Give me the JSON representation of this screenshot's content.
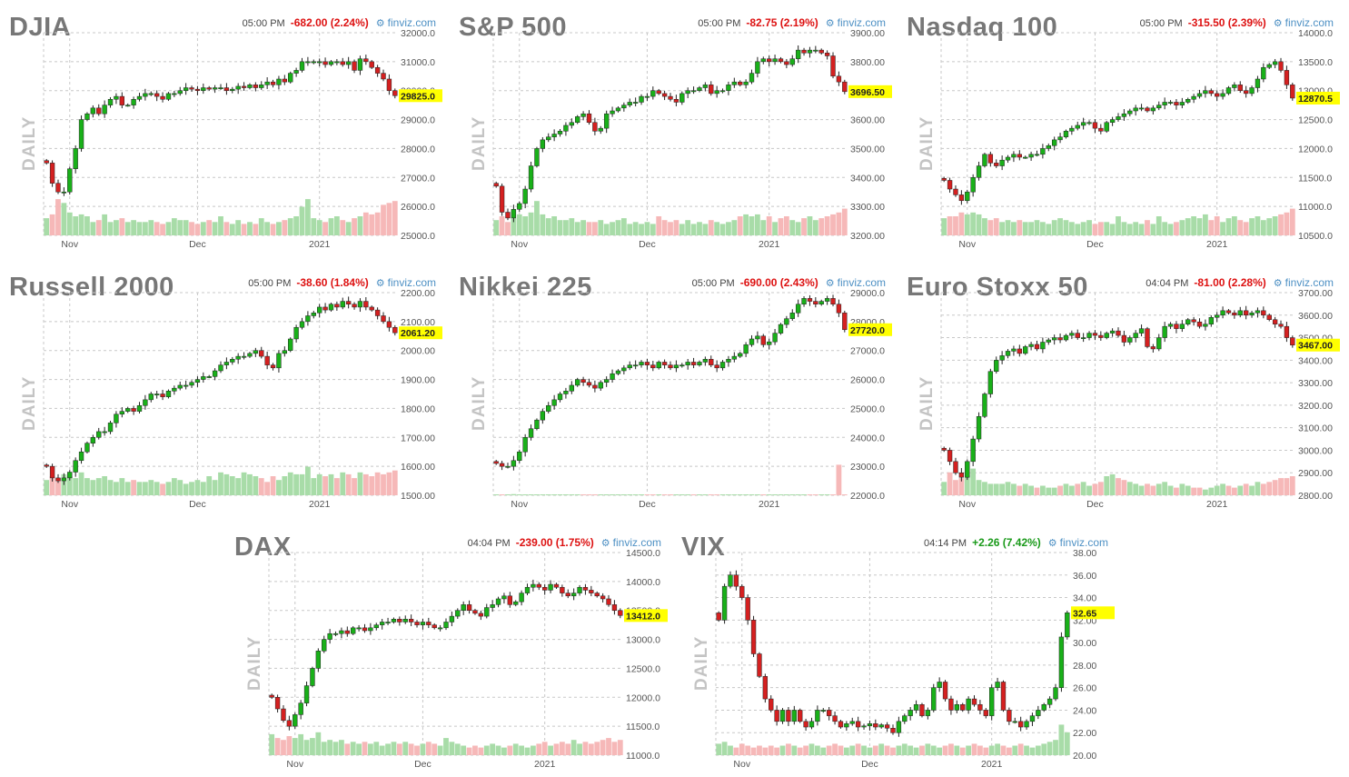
{
  "common": {
    "daily_label": "DAILY",
    "brand": "finviz.com",
    "brand_icon": "settings-icon",
    "month_labels": [
      "Nov",
      "Dec",
      "2021"
    ],
    "colors": {
      "up": "#19b019",
      "down": "#d42020",
      "vol_up": "#a8dca8",
      "vol_down": "#f6b8b8",
      "highlight": "#ffff00",
      "grid": "#c8c8c8"
    }
  },
  "panels": [
    {
      "title": "DJIA",
      "time": "05:00 PM",
      "change": "-682.00 (2.24%)",
      "direction": "down"
    },
    {
      "title": "S&P 500",
      "time": "05:00 PM",
      "change": "-82.75 (2.19%)",
      "direction": "down"
    },
    {
      "title": "Nasdaq 100",
      "time": "05:00 PM",
      "change": "-315.50 (2.39%)",
      "direction": "down"
    },
    {
      "title": "Russell 2000",
      "time": "05:00 PM",
      "change": "-38.60 (1.84%)",
      "direction": "down"
    },
    {
      "title": "Nikkei 225",
      "time": "05:00 PM",
      "change": "-690.00 (2.43%)",
      "direction": "down"
    },
    {
      "title": "Euro Stoxx 50",
      "time": "04:04 PM",
      "change": "-81.00 (2.28%)",
      "direction": "down"
    },
    {
      "title": "DAX",
      "time": "04:04 PM",
      "change": "-239.00 (1.75%)",
      "direction": "down"
    },
    {
      "title": "VIX",
      "time": "04:14 PM",
      "change": "+2.26 (7.42%)",
      "direction": "up"
    }
  ],
  "chart_data": [
    {
      "type": "candlestick",
      "title": "DJIA",
      "y_ticks": [
        "32000.0",
        "31000.0",
        "30000.0",
        "29000.0",
        "28000.0",
        "27000.0",
        "26000.0",
        "25000.0"
      ],
      "ylim": [
        25000,
        32000
      ],
      "last_label": "29825.0",
      "last_value": 29825,
      "close": [
        27500,
        26800,
        26500,
        26500,
        27300,
        28000,
        29000,
        29200,
        29400,
        29200,
        29500,
        29700,
        29800,
        29500,
        29500,
        29700,
        29800,
        29900,
        29900,
        29800,
        29700,
        29900,
        29900,
        30000,
        30100,
        30050,
        30000,
        30100,
        30050,
        30100,
        30100,
        30000,
        30050,
        30150,
        30100,
        30200,
        30100,
        30200,
        30300,
        30200,
        30400,
        30300,
        30600,
        30700,
        31000,
        31000,
        31000,
        31000,
        30900,
        31000,
        31000,
        30900,
        31000,
        30700,
        31100,
        31000,
        30800,
        30600,
        30400,
        30000,
        29825
      ],
      "volume_rel": [
        0.45,
        0.55,
        0.95,
        0.85,
        0.6,
        0.5,
        0.55,
        0.5,
        0.35,
        0.4,
        0.55,
        0.35,
        0.4,
        0.45,
        0.35,
        0.4,
        0.35,
        0.35,
        0.4,
        0.35,
        0.3,
        0.35,
        0.45,
        0.4,
        0.4,
        0.35,
        0.3,
        0.35,
        0.4,
        0.35,
        0.5,
        0.35,
        0.3,
        0.4,
        0.3,
        0.35,
        0.3,
        0.45,
        0.35,
        0.3,
        0.35,
        0.4,
        0.45,
        0.5,
        0.75,
        0.95,
        0.45,
        0.4,
        0.35,
        0.45,
        0.5,
        0.4,
        0.35,
        0.45,
        0.5,
        0.6,
        0.55,
        0.6,
        0.8,
        0.85,
        0.9
      ]
    },
    {
      "type": "candlestick",
      "title": "S&P 500",
      "y_ticks": [
        "3900.00",
        "3800.00",
        "3700.00",
        "3600.00",
        "3500.00",
        "3400.00",
        "3300.00",
        "3200.00"
      ],
      "ylim": [
        3200,
        3900
      ],
      "last_label": "3696.50",
      "last_value": 3696.5,
      "close": [
        3370,
        3280,
        3260,
        3290,
        3310,
        3360,
        3440,
        3500,
        3530,
        3540,
        3550,
        3560,
        3580,
        3590,
        3610,
        3620,
        3590,
        3560,
        3570,
        3620,
        3630,
        3640,
        3650,
        3660,
        3660,
        3680,
        3680,
        3700,
        3690,
        3680,
        3670,
        3660,
        3690,
        3700,
        3700,
        3710,
        3720,
        3690,
        3700,
        3700,
        3720,
        3730,
        3720,
        3730,
        3760,
        3800,
        3810,
        3800,
        3810,
        3800,
        3790,
        3810,
        3840,
        3830,
        3840,
        3840,
        3830,
        3820,
        3750,
        3730,
        3696.5
      ],
      "volume_rel": [
        0.4,
        0.5,
        0.35,
        0.45,
        0.55,
        0.5,
        0.6,
        0.9,
        0.55,
        0.45,
        0.5,
        0.4,
        0.4,
        0.45,
        0.35,
        0.4,
        0.35,
        0.35,
        0.4,
        0.3,
        0.35,
        0.4,
        0.45,
        0.3,
        0.35,
        0.3,
        0.35,
        0.3,
        0.5,
        0.4,
        0.35,
        0.4,
        0.3,
        0.4,
        0.3,
        0.35,
        0.3,
        0.4,
        0.35,
        0.3,
        0.35,
        0.4,
        0.5,
        0.55,
        0.5,
        0.55,
        0.4,
        0.5,
        0.35,
        0.45,
        0.5,
        0.4,
        0.35,
        0.45,
        0.5,
        0.4,
        0.45,
        0.5,
        0.55,
        0.6,
        0.7
      ]
    },
    {
      "type": "candlestick",
      "title": "Nasdaq 100",
      "y_ticks": [
        "14000.0",
        "13500.0",
        "13000.0",
        "12500.0",
        "12000.0",
        "11500.0",
        "11000.0",
        "10500.0"
      ],
      "ylim": [
        10500,
        14000
      ],
      "last_label": "12870.5",
      "last_value": 12870.5,
      "close": [
        11450,
        11300,
        11200,
        11100,
        11250,
        11500,
        11700,
        11900,
        11750,
        11700,
        11800,
        11850,
        11900,
        11850,
        11850,
        11900,
        11900,
        12000,
        12050,
        12150,
        12200,
        12300,
        12350,
        12400,
        12450,
        12450,
        12350,
        12300,
        12450,
        12500,
        12550,
        12600,
        12650,
        12700,
        12700,
        12650,
        12700,
        12750,
        12800,
        12800,
        12750,
        12800,
        12850,
        12900,
        12950,
        13000,
        12950,
        12900,
        12950,
        13050,
        13100,
        13000,
        12950,
        13050,
        13200,
        13400,
        13450,
        13500,
        13350,
        13100,
        12870.5
      ],
      "volume_rel": [
        0.45,
        0.5,
        0.5,
        0.6,
        0.55,
        0.6,
        0.55,
        0.45,
        0.4,
        0.45,
        0.35,
        0.4,
        0.35,
        0.4,
        0.35,
        0.35,
        0.4,
        0.35,
        0.3,
        0.4,
        0.45,
        0.4,
        0.35,
        0.3,
        0.35,
        0.4,
        0.3,
        0.35,
        0.35,
        0.3,
        0.5,
        0.35,
        0.3,
        0.35,
        0.3,
        0.4,
        0.3,
        0.5,
        0.35,
        0.3,
        0.35,
        0.4,
        0.45,
        0.5,
        0.45,
        0.55,
        0.4,
        0.5,
        0.35,
        0.45,
        0.5,
        0.4,
        0.35,
        0.45,
        0.5,
        0.4,
        0.45,
        0.5,
        0.55,
        0.6,
        0.7
      ]
    },
    {
      "type": "candlestick",
      "title": "Russell 2000",
      "y_ticks": [
        "2200.00",
        "2100.00",
        "2000.00",
        "1900.00",
        "1800.00",
        "1700.00",
        "1600.00",
        "1500.00"
      ],
      "ylim": [
        1500,
        2200
      ],
      "last_label": "2061.20",
      "last_value": 2061.2,
      "close": [
        1600,
        1560,
        1550,
        1560,
        1580,
        1620,
        1650,
        1680,
        1700,
        1720,
        1720,
        1750,
        1780,
        1790,
        1800,
        1790,
        1810,
        1830,
        1850,
        1850,
        1840,
        1860,
        1870,
        1880,
        1880,
        1890,
        1900,
        1910,
        1910,
        1930,
        1950,
        1960,
        1970,
        1980,
        1980,
        1990,
        2000,
        1980,
        1950,
        1940,
        1990,
        2000,
        2040,
        2080,
        2100,
        2120,
        2130,
        2150,
        2140,
        2160,
        2150,
        2170,
        2160,
        2150,
        2170,
        2150,
        2140,
        2120,
        2100,
        2080,
        2061.2
      ],
      "volume_rel": [
        0.4,
        0.5,
        0.45,
        0.55,
        0.5,
        0.45,
        0.6,
        0.45,
        0.4,
        0.45,
        0.5,
        0.4,
        0.35,
        0.45,
        0.35,
        0.4,
        0.35,
        0.35,
        0.4,
        0.35,
        0.3,
        0.35,
        0.45,
        0.4,
        0.3,
        0.35,
        0.4,
        0.35,
        0.5,
        0.4,
        0.6,
        0.55,
        0.5,
        0.45,
        0.6,
        0.55,
        0.5,
        0.45,
        0.35,
        0.5,
        0.4,
        0.5,
        0.6,
        0.55,
        0.55,
        0.75,
        0.45,
        0.55,
        0.5,
        0.55,
        0.45,
        0.6,
        0.55,
        0.45,
        0.6,
        0.55,
        0.5,
        0.6,
        0.55,
        0.6,
        0.65
      ]
    },
    {
      "type": "candlestick",
      "title": "Nikkei 225",
      "y_ticks": [
        "29000.0",
        "28000.0",
        "27000.0",
        "26000.0",
        "25000.0",
        "24000.0",
        "23000.0",
        "22000.0"
      ],
      "ylim": [
        22000,
        29000
      ],
      "last_label": "27720.0",
      "last_value": 27720,
      "close": [
        23100,
        23000,
        23000,
        23200,
        23500,
        24000,
        24300,
        24600,
        24900,
        25100,
        25300,
        25500,
        25600,
        25800,
        26000,
        25900,
        25800,
        25700,
        25900,
        26000,
        26200,
        26300,
        26400,
        26500,
        26500,
        26600,
        26500,
        26400,
        26600,
        26500,
        26400,
        26500,
        26500,
        26600,
        26500,
        26600,
        26700,
        26500,
        26400,
        26600,
        26700,
        26800,
        26900,
        27200,
        27400,
        27500,
        27200,
        27300,
        27600,
        27900,
        28100,
        28300,
        28600,
        28800,
        28700,
        28600,
        28700,
        28800,
        28600,
        28300,
        27720
      ],
      "volume_rel": [
        0.02,
        0.02,
        0.02,
        0.03,
        0.02,
        0.02,
        0.02,
        0.02,
        0.02,
        0.02,
        0.02,
        0.02,
        0.02,
        0.02,
        0.02,
        0.02,
        0.02,
        0.02,
        0.02,
        0.02,
        0.02,
        0.02,
        0.02,
        0.02,
        0.02,
        0.02,
        0.02,
        0.02,
        0.02,
        0.02,
        0.02,
        0.02,
        0.02,
        0.02,
        0.02,
        0.02,
        0.02,
        0.02,
        0.02,
        0.02,
        0.02,
        0.02,
        0.02,
        0.02,
        0.02,
        0.02,
        0.02,
        0.02,
        0.02,
        0.02,
        0.02,
        0.02,
        0.02,
        0.02,
        0.02,
        0.02,
        0.02,
        0.02,
        0.02,
        0.8,
        0.02
      ]
    },
    {
      "type": "candlestick",
      "title": "Euro Stoxx 50",
      "y_ticks": [
        "3700.00",
        "3600.00",
        "3500.00",
        "3400.00",
        "3300.00",
        "3200.00",
        "3100.00",
        "3000.00",
        "2900.00",
        "2800.00"
      ],
      "ylim": [
        2800,
        3700
      ],
      "last_label": "3467.00",
      "last_value": 3467,
      "close": [
        3000,
        2950,
        2900,
        2880,
        2950,
        3050,
        3150,
        3250,
        3350,
        3400,
        3420,
        3440,
        3450,
        3430,
        3460,
        3470,
        3450,
        3480,
        3490,
        3500,
        3490,
        3510,
        3520,
        3500,
        3500,
        3520,
        3510,
        3500,
        3520,
        3530,
        3510,
        3480,
        3500,
        3520,
        3540,
        3460,
        3450,
        3500,
        3550,
        3560,
        3540,
        3560,
        3580,
        3570,
        3550,
        3560,
        3590,
        3600,
        3620,
        3610,
        3600,
        3620,
        3600,
        3610,
        3620,
        3600,
        3580,
        3560,
        3550,
        3500,
        3467
      ],
      "volume_rel": [
        0.35,
        0.6,
        0.4,
        0.45,
        0.55,
        0.7,
        0.4,
        0.35,
        0.3,
        0.3,
        0.3,
        0.35,
        0.3,
        0.25,
        0.3,
        0.25,
        0.2,
        0.25,
        0.2,
        0.2,
        0.25,
        0.3,
        0.25,
        0.3,
        0.35,
        0.25,
        0.3,
        0.35,
        0.5,
        0.55,
        0.45,
        0.4,
        0.35,
        0.3,
        0.25,
        0.3,
        0.25,
        0.3,
        0.35,
        0.25,
        0.2,
        0.3,
        0.25,
        0.2,
        0.2,
        0.15,
        0.2,
        0.25,
        0.3,
        0.25,
        0.2,
        0.25,
        0.3,
        0.25,
        0.35,
        0.3,
        0.35,
        0.4,
        0.45,
        0.45,
        0.5
      ]
    },
    {
      "type": "candlestick",
      "title": "DAX",
      "y_ticks": [
        "14500.0",
        "14000.0",
        "13500.0",
        "13000.0",
        "12500.0",
        "12000.0",
        "11500.0",
        "11000.0"
      ],
      "ylim": [
        11000,
        14500
      ],
      "last_label": "13412.0",
      "last_value": 13412,
      "close": [
        12000,
        11800,
        11600,
        11500,
        11700,
        11900,
        12200,
        12500,
        12800,
        13000,
        13100,
        13100,
        13150,
        13100,
        13200,
        13200,
        13150,
        13200,
        13250,
        13300,
        13300,
        13350,
        13300,
        13350,
        13300,
        13250,
        13300,
        13250,
        13200,
        13200,
        13300,
        13400,
        13500,
        13600,
        13500,
        13450,
        13400,
        13550,
        13600,
        13700,
        13750,
        13600,
        13650,
        13800,
        13900,
        13950,
        13900,
        13850,
        13950,
        13900,
        13800,
        13750,
        13800,
        13900,
        13850,
        13800,
        13750,
        13700,
        13600,
        13500,
        13412
      ],
      "volume_rel": [
        0.55,
        0.45,
        0.4,
        0.5,
        0.45,
        0.55,
        0.4,
        0.45,
        0.6,
        0.35,
        0.4,
        0.35,
        0.4,
        0.3,
        0.35,
        0.3,
        0.35,
        0.3,
        0.35,
        0.25,
        0.3,
        0.35,
        0.3,
        0.35,
        0.3,
        0.25,
        0.3,
        0.35,
        0.3,
        0.25,
        0.45,
        0.35,
        0.3,
        0.25,
        0.2,
        0.25,
        0.2,
        0.25,
        0.3,
        0.25,
        0.2,
        0.25,
        0.3,
        0.25,
        0.2,
        0.25,
        0.3,
        0.35,
        0.25,
        0.3,
        0.35,
        0.3,
        0.4,
        0.3,
        0.35,
        0.3,
        0.35,
        0.4,
        0.45,
        0.35,
        0.4
      ]
    },
    {
      "type": "candlestick",
      "title": "VIX",
      "y_ticks": [
        "38.00",
        "36.00",
        "34.00",
        "32.00",
        "30.00",
        "28.00",
        "26.00",
        "24.00",
        "22.00",
        "20.00"
      ],
      "ylim": [
        20,
        38
      ],
      "last_label": "32.65",
      "last_value": 32.65,
      "close": [
        32,
        35,
        36,
        35,
        34,
        32,
        29,
        27,
        25,
        24,
        23,
        24,
        23,
        24,
        23,
        22.5,
        23,
        24,
        24,
        23.5,
        23,
        22.5,
        22.8,
        23,
        22.5,
        22.6,
        22.8,
        22.5,
        22.7,
        22.4,
        22,
        23,
        23.5,
        24,
        24.5,
        23.5,
        24,
        26,
        26.5,
        25,
        24,
        24.5,
        24,
        25,
        24.5,
        24,
        23.5,
        26,
        26.5,
        24,
        23,
        23,
        22.5,
        23,
        23.5,
        24,
        24.5,
        25,
        26,
        30.5,
        32.65
      ],
      "volume_rel": [
        0.3,
        0.35,
        0.25,
        0.2,
        0.3,
        0.25,
        0.2,
        0.25,
        0.2,
        0.25,
        0.2,
        0.25,
        0.3,
        0.25,
        0.2,
        0.25,
        0.3,
        0.25,
        0.2,
        0.25,
        0.3,
        0.25,
        0.2,
        0.25,
        0.3,
        0.25,
        0.2,
        0.25,
        0.3,
        0.25,
        0.2,
        0.25,
        0.3,
        0.25,
        0.2,
        0.25,
        0.3,
        0.25,
        0.2,
        0.25,
        0.3,
        0.25,
        0.2,
        0.25,
        0.3,
        0.25,
        0.2,
        0.25,
        0.3,
        0.25,
        0.2,
        0.25,
        0.3,
        0.25,
        0.2,
        0.25,
        0.3,
        0.35,
        0.4,
        0.8,
        0.6
      ]
    }
  ]
}
